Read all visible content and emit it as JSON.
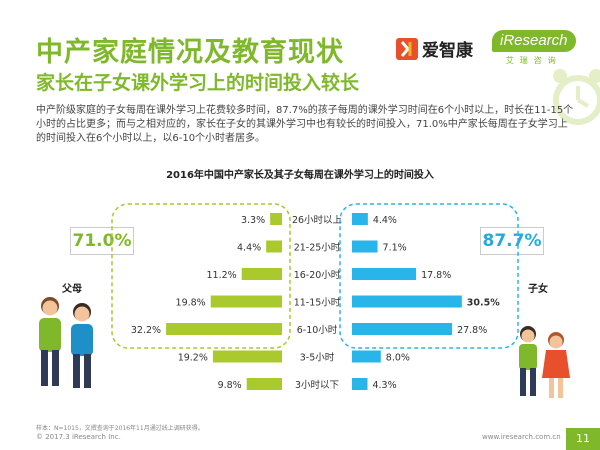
{
  "header": {
    "title": "中产家庭情况及教育现状",
    "subtitle": "家长在子女课外学习上的时间投入较长",
    "logo_aizk": "爱智康",
    "logo_ir": "iResearch",
    "logo_ir_cn": "艾瑞咨询"
  },
  "description": "中产阶级家庭的子女每周在课外学习上花费较多时间，87.7%的孩子每周的课外学习时间在6个小时以上，时长在11-15个小时的占比更多；而与之相对应的，家长在子女的其课外学习中也有较长的时间投入，71.0%中产家长每周在子女学习上的时间投入在6个小时以上，以6-10个小时者居多。",
  "big_values": {
    "parents": "71.0%",
    "children": "87.7%"
  },
  "labels": {
    "parents": "父母",
    "children": "子女"
  },
  "footer": {
    "note": "样本：N=1015，文撰查询于2016年11月通过线上调研获得。",
    "copyright": "© 2017.3  iResearch Inc.",
    "url": "www.iresearch.com.cn",
    "page": "11"
  },
  "colors": {
    "green": "#a9c92d",
    "blue": "#29b5ea",
    "title_green": "#7fb82a"
  },
  "chart_data": {
    "type": "bar",
    "title": "2016年中国中产家长及其子女每周在课外学习上的时间投入",
    "categories": [
      "26小时以上",
      "21-25小时",
      "16-20小时",
      "11-15小时",
      "6-10小时",
      "3-5小时",
      "3小时以下"
    ],
    "series": [
      {
        "name": "父母",
        "values": [
          3.3,
          4.4,
          11.2,
          19.8,
          32.2,
          19.2,
          9.8
        ],
        "labels": [
          "3.3%",
          "4.4%",
          "11.2%",
          "19.8%",
          "32.2%",
          "19.2%",
          "9.8%"
        ]
      },
      {
        "name": "子女",
        "values": [
          4.4,
          7.1,
          17.8,
          30.5,
          27.8,
          8.0,
          4.3
        ],
        "labels": [
          "4.4%",
          "7.1%",
          "17.8%",
          "30.5%",
          "27.8%",
          "8.0%",
          "4.3%"
        ]
      }
    ],
    "highlight_child_index": 3
  }
}
